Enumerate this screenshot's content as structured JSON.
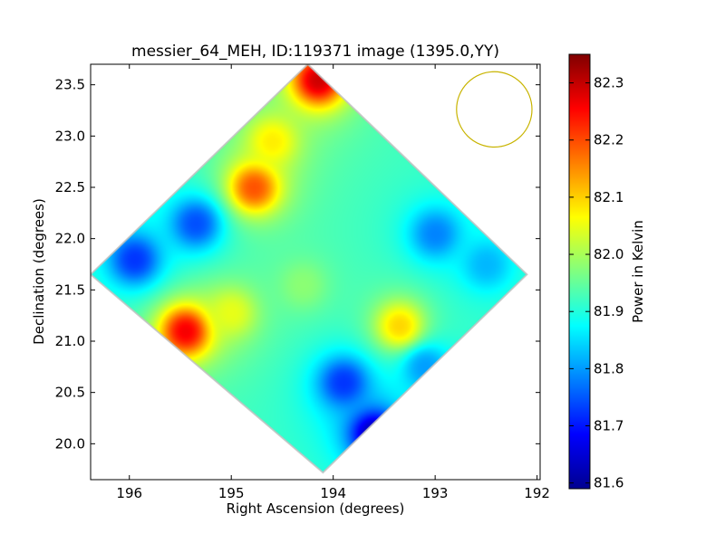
{
  "chart_data": {
    "type": "heatmap",
    "title": "messier_64_MEH, ID:119371 image (1395.0,YY)",
    "xlabel": "Right Ascension (degrees)",
    "ylabel": "Declination (degrees)",
    "xlim": [
      196.38,
      191.97
    ],
    "ylim": [
      19.65,
      23.7
    ],
    "x_ticks": [
      196,
      195,
      194,
      193,
      192
    ],
    "x_tick_labels": [
      "196",
      "195",
      "194",
      "193",
      "192"
    ],
    "y_ticks": [
      20.0,
      20.5,
      21.0,
      21.5,
      22.0,
      22.5,
      23.0,
      23.5
    ],
    "y_tick_labels": [
      "20.0",
      "20.5",
      "21.0",
      "21.5",
      "22.0",
      "22.5",
      "23.0",
      "23.5"
    ],
    "colorbar": {
      "label": "Power in Kelvin",
      "colormap": "jet",
      "range": [
        81.59,
        82.35
      ],
      "ticks": [
        81.6,
        81.7,
        81.8,
        81.9,
        82.0,
        82.1,
        82.2,
        82.3
      ],
      "tick_labels": [
        "81.6",
        "81.7",
        "81.8",
        "81.9",
        "82.0",
        "82.1",
        "82.2",
        "82.3"
      ]
    },
    "footprint": {
      "shape": "diamond",
      "vertices": [
        [
          194.25,
          23.7
        ],
        [
          192.1,
          21.65
        ],
        [
          194.1,
          19.72
        ],
        [
          196.38,
          21.65
        ]
      ]
    },
    "background_value": 81.92,
    "features": [
      {
        "ra": 195.45,
        "dec": 21.1,
        "value": 82.27
      },
      {
        "ra": 194.78,
        "dec": 22.5,
        "value": 82.2
      },
      {
        "ra": 194.15,
        "dec": 23.55,
        "value": 82.3
      },
      {
        "ra": 195.0,
        "dec": 21.28,
        "value": 82.05
      },
      {
        "ra": 194.6,
        "dec": 22.95,
        "value": 82.08
      },
      {
        "ra": 193.35,
        "dec": 21.15,
        "value": 82.1
      },
      {
        "ra": 193.6,
        "dec": 20.1,
        "value": 81.62
      },
      {
        "ra": 193.9,
        "dec": 20.6,
        "value": 81.72
      },
      {
        "ra": 193.1,
        "dec": 20.75,
        "value": 81.8
      },
      {
        "ra": 195.35,
        "dec": 22.15,
        "value": 81.74
      },
      {
        "ra": 195.95,
        "dec": 21.8,
        "value": 81.72
      },
      {
        "ra": 193.0,
        "dec": 22.05,
        "value": 81.78
      },
      {
        "ra": 192.5,
        "dec": 21.75,
        "value": 81.82
      },
      {
        "ra": 194.3,
        "dec": 21.55,
        "value": 81.98
      }
    ],
    "beam_circle": {
      "ra": 192.42,
      "dec": 23.26,
      "radius_deg": 0.37,
      "color": "#c8b400"
    },
    "grid": false
  }
}
